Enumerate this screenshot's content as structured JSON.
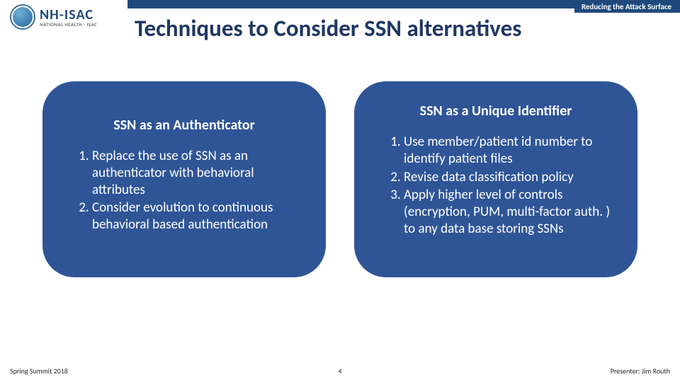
{
  "header": {
    "tag": "Reducing the Attack Surface",
    "accent_color": "#1f497d"
  },
  "logo": {
    "name": "NH-ISAC",
    "subtitle": "NATIONAL HEALTH - ISAC"
  },
  "title": "Techniques to Consider SSN alternatives",
  "title_color": "#203864",
  "panels": {
    "background_color": "#2f5597",
    "text_color": "#ffffff",
    "border_radius": 45,
    "left": {
      "title": "SSN as an Authenticator",
      "items": [
        "Replace the use of SSN as an authenticator with behavioral attributes",
        "Consider evolution to continuous behavioral based authentication"
      ]
    },
    "right": {
      "title": "SSN as a Unique Identifier",
      "items": [
        "Use member/patient id number to identify patient files",
        "Revise data classification policy",
        "Apply higher level of controls (encryption, PUM, multi-factor auth. ) to any data base storing SSNs"
      ]
    }
  },
  "footer": {
    "left": "Spring Summit 2018",
    "page": "4",
    "right": "Presenter: Jim Routh"
  }
}
